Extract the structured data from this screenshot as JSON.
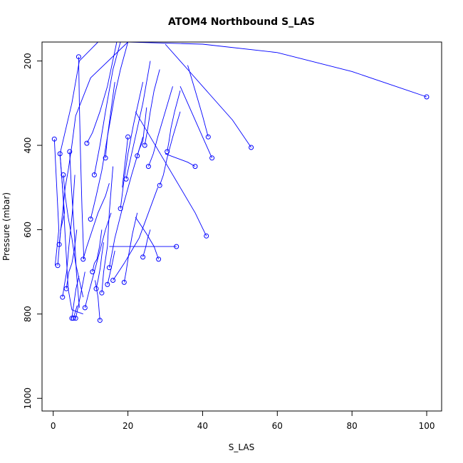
{
  "chart_data": {
    "type": "line",
    "title": "ATOM4 Northbound S_LAS",
    "xlabel": "S_LAS",
    "ylabel": "Pressure (mbar)",
    "xlim": [
      -3,
      104
    ],
    "ylim": [
      1030,
      155
    ],
    "y_inverted": true,
    "x_ticks": [
      0,
      20,
      40,
      60,
      80,
      100
    ],
    "y_ticks": [
      200,
      400,
      600,
      800,
      1000
    ],
    "series_color": "#0000ff",
    "marker": "open-circle",
    "series": [
      {
        "x": [
          0.3,
          1.5,
          0.5
        ],
        "y": [
          385,
          600,
          685
        ]
      },
      {
        "x": [
          1.2,
          2.0,
          3.0,
          1.8,
          5.0,
          7.0,
          12.0,
          16.0
        ],
        "y": [
          685,
          600,
          560,
          420,
          300,
          200,
          155,
          155
        ]
      },
      {
        "x": [
          1.6,
          2.5,
          3.2,
          4.0,
          4.5,
          5.0,
          6.0,
          10.0,
          20.0
        ],
        "y": [
          635,
          560,
          500,
          460,
          430,
          400,
          330,
          240,
          155
        ]
      },
      {
        "x": [
          1.8,
          2.2,
          2.6,
          3.1,
          4.0,
          5.0,
          8.0
        ],
        "y": [
          420,
          465,
          515,
          600,
          740,
          790,
          800
        ]
      },
      {
        "x": [
          2.5,
          3.0,
          3.6,
          4.2,
          5.1,
          5.8
        ],
        "y": [
          760,
          730,
          700,
          640,
          560,
          470
        ]
      },
      {
        "x": [
          2.7,
          3.2,
          4.0,
          5.0,
          6.0,
          8.0
        ],
        "y": [
          470,
          520,
          570,
          620,
          680,
          760
        ]
      },
      {
        "x": [
          3.5,
          4.2,
          5.0,
          5.6,
          6.3
        ],
        "y": [
          740,
          700,
          680,
          650,
          600
        ]
      },
      {
        "x": [
          4.4,
          4.8,
          5.3,
          5.8,
          6.2,
          7.0
        ],
        "y": [
          415,
          490,
          560,
          630,
          700,
          785
        ]
      },
      {
        "x": [
          5.0,
          5.3,
          5.6,
          6.1,
          6.9
        ],
        "y": [
          810,
          790,
          770,
          740,
          710
        ]
      },
      {
        "x": [
          5.4,
          5.9,
          6.4
        ],
        "y": [
          810,
          795,
          780
        ]
      },
      {
        "x": [
          6.0,
          6.5,
          7.2,
          8.5
        ],
        "y": [
          810,
          790,
          760,
          700
        ]
      },
      {
        "x": [
          6.8,
          7.0,
          7.3,
          7.7,
          8.2
        ],
        "y": [
          190,
          300,
          420,
          550,
          670
        ]
      },
      {
        "x": [
          8.0,
          9.0,
          10.5,
          12.0,
          14.0,
          15.0
        ],
        "y": [
          670,
          640,
          600,
          560,
          520,
          490
        ]
      },
      {
        "x": [
          8.5,
          9.5,
          11.0,
          12.5,
          14.0,
          15.5
        ],
        "y": [
          785,
          750,
          700,
          650,
          600,
          560
        ]
      },
      {
        "x": [
          9.0,
          10.5,
          12.5,
          14.5,
          17.0
        ],
        "y": [
          395,
          370,
          320,
          260,
          155
        ]
      },
      {
        "x": [
          10.0,
          11.5,
          13.0,
          14.5,
          16.5
        ],
        "y": [
          575,
          520,
          460,
          380,
          250
        ]
      },
      {
        "x": [
          10.5,
          11.0,
          11.7,
          12.4,
          13.0
        ],
        "y": [
          700,
          680,
          670,
          640,
          600
        ]
      },
      {
        "x": [
          11.0,
          12.5,
          14.0,
          16.0,
          18.0
        ],
        "y": [
          470,
          400,
          320,
          220,
          155
        ]
      },
      {
        "x": [
          11.5,
          12.0,
          12.6,
          13.0,
          13.5
        ],
        "y": [
          740,
          720,
          690,
          660,
          630
        ]
      },
      {
        "x": [
          12.5,
          12.0,
          11.2
        ],
        "y": [
          815,
          760,
          720
        ]
      },
      {
        "x": [
          13.0,
          13.5,
          14.5,
          15.0,
          16.0
        ],
        "y": [
          750,
          700,
          640,
          560,
          450
        ]
      },
      {
        "x": [
          14.0,
          14.5,
          15.5,
          16.5,
          18.0,
          20.0
        ],
        "y": [
          430,
          380,
          330,
          280,
          220,
          155
        ]
      },
      {
        "x": [
          14.5,
          14.8,
          15.3,
          15.8,
          16.5
        ],
        "y": [
          730,
          720,
          700,
          680,
          650
        ]
      },
      {
        "x": [
          15.0,
          16.5,
          18.5,
          21.0,
          24.0
        ],
        "y": [
          690,
          620,
          550,
          470,
          380
        ]
      },
      {
        "x": [
          16.0,
          17.5,
          19.0,
          21.0,
          23.0,
          28.0
        ],
        "y": [
          720,
          700,
          680,
          650,
          620,
          500
        ]
      },
      {
        "x": [
          18.0,
          19.0,
          20.0,
          21.5,
          24.0
        ],
        "y": [
          550,
          480,
          420,
          350,
          250
        ]
      },
      {
        "x": [
          19.0,
          19.5,
          20.2,
          21.2,
          22.5
        ],
        "y": [
          725,
          700,
          660,
          610,
          560
        ]
      },
      {
        "x": [
          19.5,
          20.5,
          22.0,
          24.0,
          26.0
        ],
        "y": [
          480,
          440,
          380,
          300,
          200
        ]
      },
      {
        "x": [
          20.0,
          19.5,
          19.0,
          18.5
        ],
        "y": [
          380,
          420,
          460,
          500
        ]
      },
      {
        "x": [
          22.5,
          23.0,
          24.0,
          24.5,
          25.0
        ],
        "y": [
          425,
          410,
          390,
          350,
          310
        ]
      },
      {
        "x": [
          24.0,
          24.8,
          25.3,
          26.0
        ],
        "y": [
          665,
          640,
          620,
          600
        ]
      },
      {
        "x": [
          24.5,
          25.3,
          26.0,
          27.0,
          28.5
        ],
        "y": [
          400,
          360,
          320,
          270,
          220
        ]
      },
      {
        "x": [
          25.5,
          26.8,
          28.0,
          30.0,
          32.0
        ],
        "y": [
          450,
          420,
          380,
          320,
          260
        ]
      },
      {
        "x": [
          28.2,
          27.0,
          25.0,
          22.0
        ],
        "y": [
          670,
          640,
          610,
          570
        ]
      },
      {
        "x": [
          28.5,
          29.5,
          30.5,
          32.0,
          34.0
        ],
        "y": [
          495,
          470,
          430,
          380,
          320
        ]
      },
      {
        "x": [
          30.5,
          31.0,
          31.5,
          32.5,
          34.0
        ],
        "y": [
          415,
          390,
          360,
          320,
          270
        ]
      },
      {
        "x": [
          33.0,
          30.0,
          25.0,
          20.0,
          15.0
        ],
        "y": [
          640,
          640,
          640,
          640,
          640
        ]
      },
      {
        "x": [
          38.0,
          36.0,
          33.0,
          30.0
        ],
        "y": [
          450,
          440,
          430,
          420
        ]
      },
      {
        "x": [
          41.0,
          38.0,
          34.0,
          30.0,
          26.0,
          22.0
        ],
        "y": [
          615,
          560,
          500,
          440,
          380,
          320
        ]
      },
      {
        "x": [
          41.5,
          40.0,
          38.0,
          36.0
        ],
        "y": [
          380,
          330,
          270,
          210
        ]
      },
      {
        "x": [
          42.5,
          40.0,
          37.0,
          34.0
        ],
        "y": [
          430,
          380,
          320,
          260
        ]
      },
      {
        "x": [
          53.0,
          48.0,
          42.0,
          36.0,
          30.0
        ],
        "y": [
          405,
          340,
          280,
          220,
          160
        ]
      },
      {
        "x": [
          100.0,
          80.0,
          60.0,
          40.0,
          20.0,
          10.0
        ],
        "y": [
          285,
          225,
          180,
          160,
          155,
          155
        ]
      }
    ]
  }
}
